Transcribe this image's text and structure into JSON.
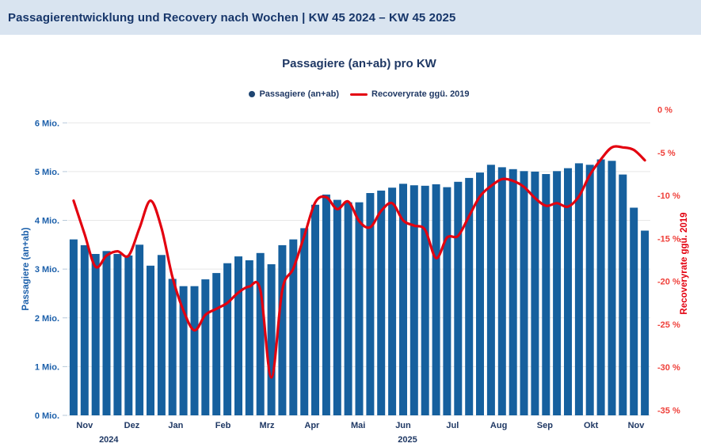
{
  "header": {
    "title": "Passagierentwicklung und Recovery nach Wochen | KW 45 2024 – KW 45 2025"
  },
  "colors": {
    "header_bg": "#d9e4f0",
    "header_text": "#17366a",
    "navy": "#1f3864",
    "bar_blue": "#16609e",
    "left_axis_blue": "#1b5faa",
    "line_red": "#e3000f",
    "right_axis_red": "#ef403a",
    "gridline": "#e7e7e7",
    "tick_mark": "#b7c9da"
  },
  "chart_data": {
    "type": "bar",
    "title": "Passagiere (an+ab) pro KW",
    "weeks": 53,
    "period": "KW 45 2024 – KW 45 2025",
    "legend": [
      {
        "label": "Passagiere (an+ab)",
        "marker": "dot"
      },
      {
        "label": "Recoveryrate ggü. 2019",
        "marker": "line"
      }
    ],
    "left_axis": {
      "title": "Passagiere (an+ab)",
      "tick_labels": [
        "0 Mio.",
        "1 Mio.",
        "2 Mio.",
        "3 Mio.",
        "4 Mio.",
        "5 Mio.",
        "6 Mio."
      ],
      "min": 0,
      "max": 6
    },
    "right_axis": {
      "title": "Recoveryrate ggü. 2019",
      "tick_labels": [
        "0 %",
        "-5 %",
        "-10 %",
        "-15 %",
        "-20 %",
        "-25 %",
        "-30 %",
        "-35 %"
      ],
      "min": -35,
      "max": 0
    },
    "x_axis": {
      "month_labels": [
        {
          "label": "Nov",
          "week_index": 1.0
        },
        {
          "label": "Dez",
          "week_index": 5.3
        },
        {
          "label": "Jan",
          "week_index": 9.3
        },
        {
          "label": "Feb",
          "week_index": 13.6
        },
        {
          "label": "Mrz",
          "week_index": 17.6
        },
        {
          "label": "Apr",
          "week_index": 21.7
        },
        {
          "label": "Mai",
          "week_index": 25.9
        },
        {
          "label": "Jun",
          "week_index": 30.0
        },
        {
          "label": "Jul",
          "week_index": 34.5
        },
        {
          "label": "Aug",
          "week_index": 38.7
        },
        {
          "label": "Sep",
          "week_index": 42.9
        },
        {
          "label": "Okt",
          "week_index": 47.1
        },
        {
          "label": "Nov",
          "week_index": 51.2
        }
      ],
      "year_labels": [
        {
          "label": "2024",
          "week_index": 3.2
        },
        {
          "label": "2025",
          "week_index": 30.4
        }
      ]
    },
    "grid": "horizontal gridlines on left axis only",
    "legend_position": "top center",
    "series": [
      {
        "name": "Passagiere (an+ab)",
        "type": "bar",
        "axis": "left",
        "unit": "Mio.",
        "values": [
          3.61,
          3.49,
          3.31,
          3.37,
          3.31,
          3.28,
          3.5,
          3.07,
          3.29,
          2.8,
          2.65,
          2.65,
          2.79,
          2.92,
          3.12,
          3.26,
          3.18,
          3.33,
          3.1,
          3.49,
          3.61,
          3.84,
          4.32,
          4.53,
          4.42,
          4.37,
          4.37,
          4.56,
          4.61,
          4.67,
          4.75,
          4.72,
          4.71,
          4.74,
          4.68,
          4.79,
          4.87,
          4.98,
          5.14,
          5.09,
          5.05,
          5.01,
          5.0,
          4.95,
          5.01,
          5.07,
          5.17,
          5.14,
          5.25,
          5.22,
          4.94,
          4.26,
          3.79
        ]
      },
      {
        "name": "Recoveryrate ggü. 2019",
        "type": "line",
        "axis": "right",
        "unit": "%",
        "values": [
          -10.6,
          -14.5,
          -18.3,
          -17.0,
          -16.5,
          -17.0,
          -13.8,
          -10.6,
          -13.8,
          -19.5,
          -23.4,
          -25.7,
          -23.9,
          -23.2,
          -22.5,
          -21.3,
          -20.6,
          -21.0,
          -31.2,
          -21.0,
          -18.5,
          -14.7,
          -10.8,
          -10.2,
          -11.6,
          -10.7,
          -13.0,
          -13.7,
          -11.8,
          -10.9,
          -12.9,
          -13.5,
          -14.0,
          -17.3,
          -14.9,
          -14.7,
          -12.4,
          -10.1,
          -8.9,
          -8.1,
          -8.3,
          -9.0,
          -10.3,
          -11.2,
          -10.9,
          -11.3,
          -10.1,
          -7.6,
          -5.8,
          -4.4,
          -4.4,
          -4.7,
          -5.9
        ]
      }
    ]
  }
}
